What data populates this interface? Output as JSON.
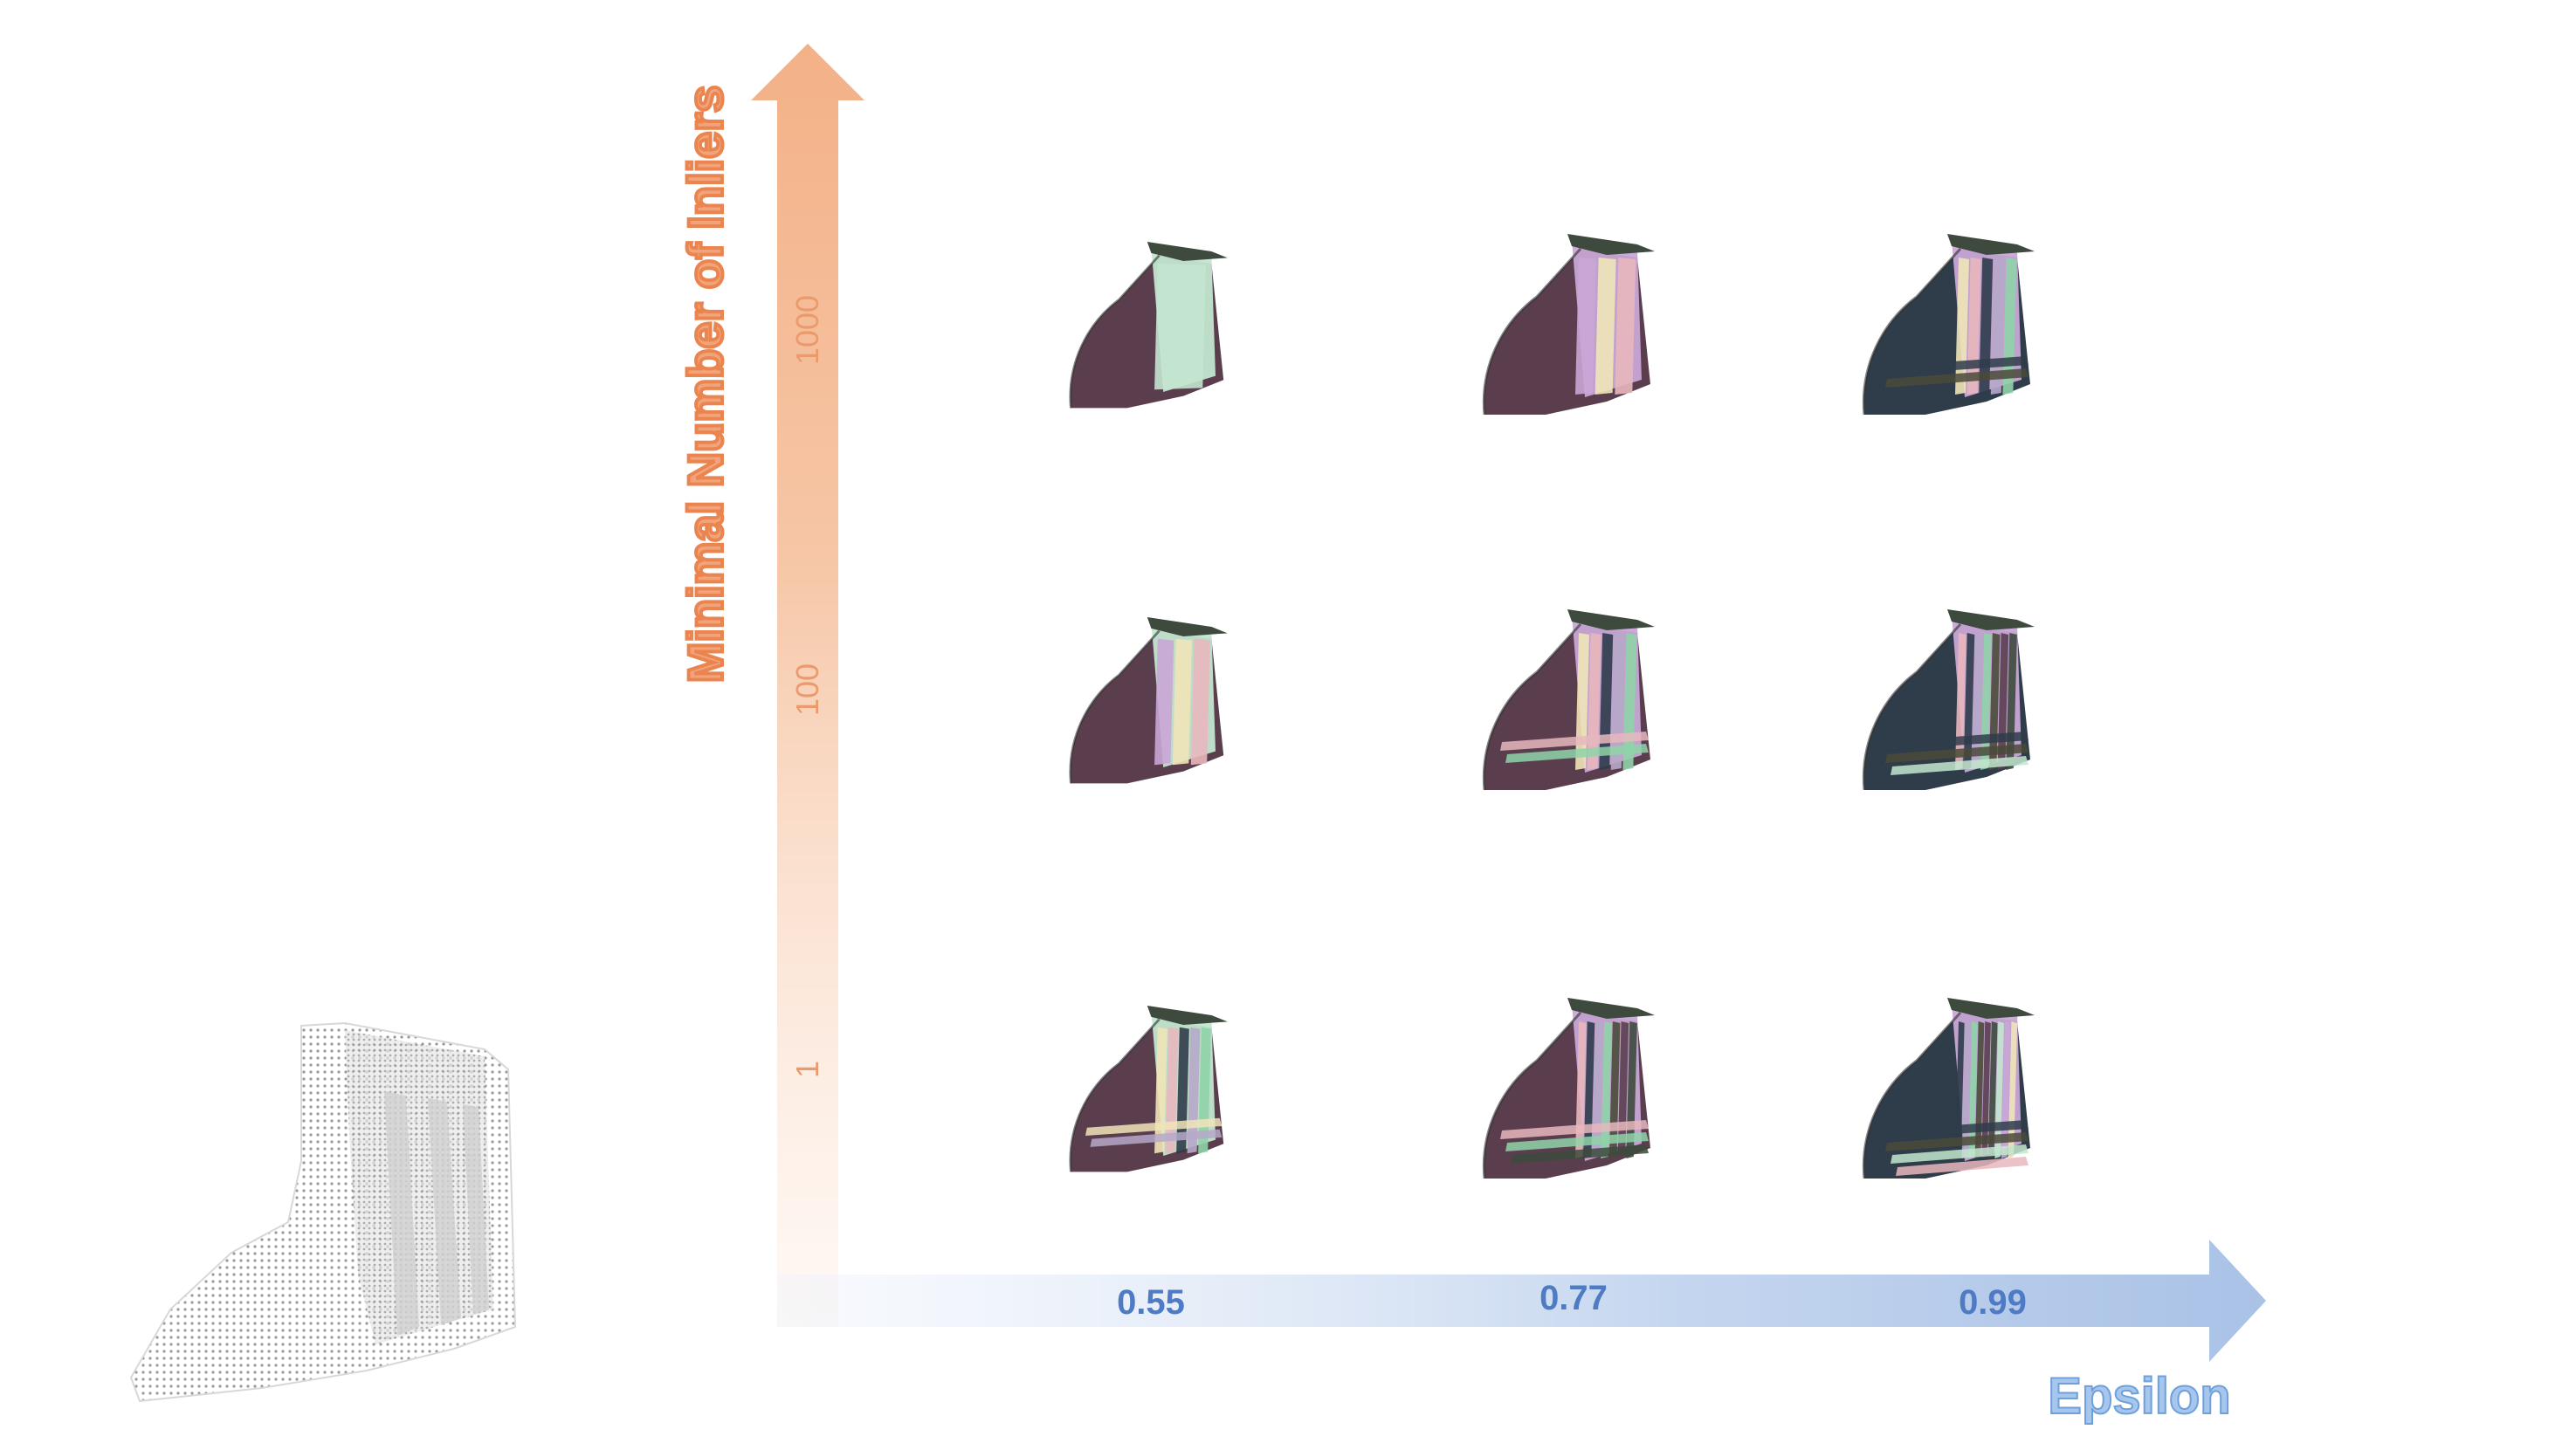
{
  "axes": {
    "y_label": "Minimal Number of Inliers",
    "x_label": "Epsilon",
    "y_ticks": [
      "1000",
      "100",
      "1"
    ],
    "x_ticks": [
      "0.55",
      "0.77",
      "0.99"
    ]
  },
  "colors": {
    "y_axis_arrow": "#f4b48a",
    "x_axis_arrow": "#a9c2e6",
    "point_cloud": "#c8c8c8",
    "segment_palette": [
      "#5a3e4e",
      "#3d4a3d",
      "#c3e6cf",
      "#c9a6d6",
      "#f0e4b8",
      "#e8b7bd",
      "#2f3c4a",
      "#b6a8c9",
      "#8fd3a8",
      "#4a4a3a"
    ]
  },
  "grid": {
    "rows": [
      "1000",
      "100",
      "1"
    ],
    "columns": [
      "0.55",
      "0.77",
      "0.99"
    ],
    "cell_content": "segmented 3D shape"
  }
}
